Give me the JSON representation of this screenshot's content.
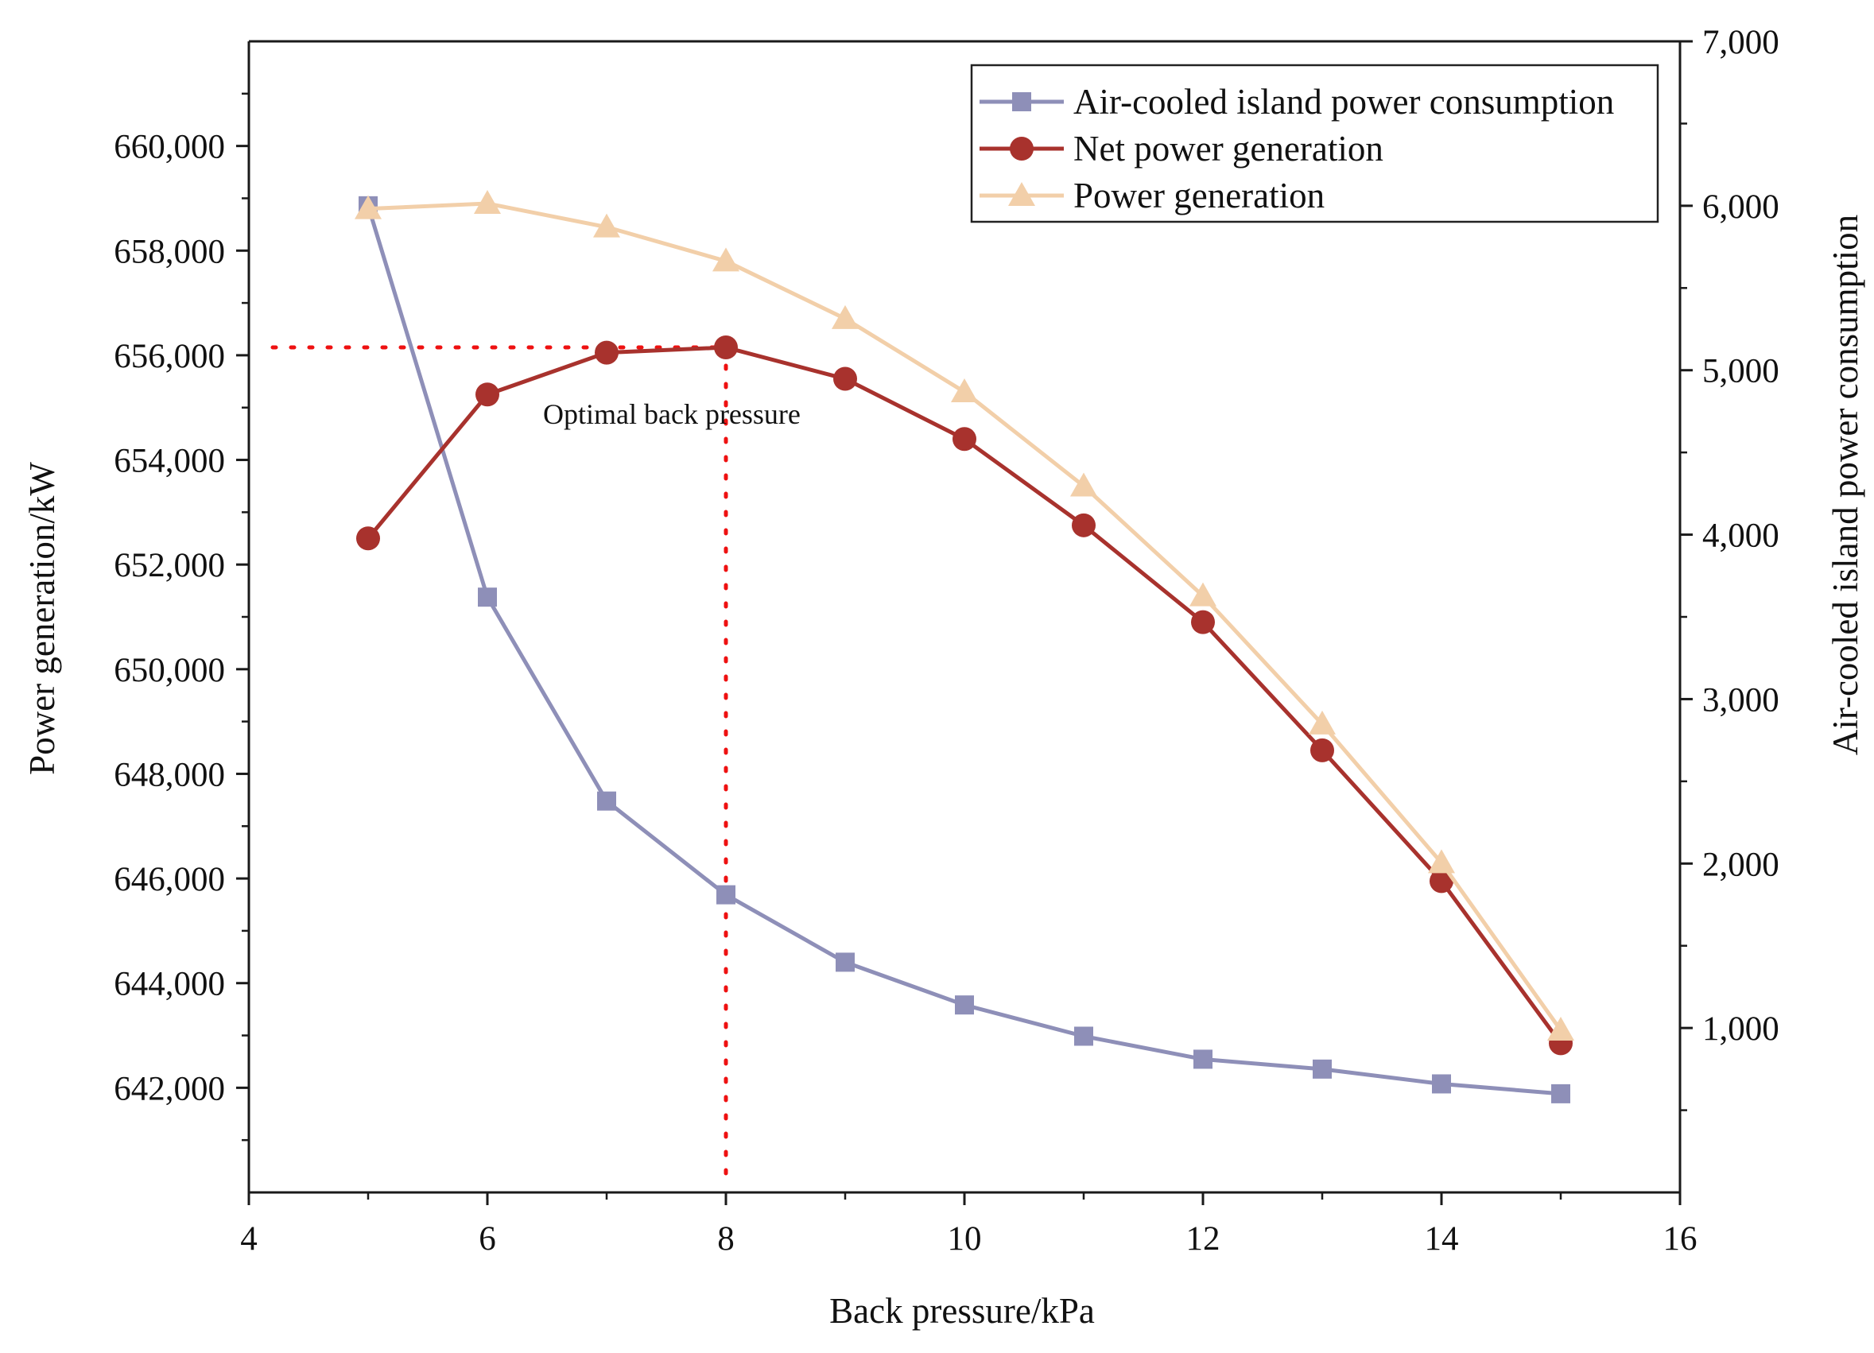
{
  "chart_data": {
    "type": "line",
    "title": "",
    "xlabel": "Back pressure/kPa",
    "ylabel_left": "Power generation/kW",
    "ylabel_right": "Air-cooled island power consumption",
    "xlim": [
      4,
      16
    ],
    "ylim_left": [
      640000,
      662000
    ],
    "ylim_right": [
      0,
      7000
    ],
    "x_ticks": [
      "4",
      "6",
      "8",
      "10",
      "12",
      "14",
      "16"
    ],
    "x_tick_values": [
      4,
      6,
      8,
      10,
      12,
      14,
      16
    ],
    "y_left_ticks": [
      "642,000",
      "644,000",
      "646,000",
      "648,000",
      "650,000",
      "652,000",
      "654,000",
      "656,000",
      "658,000",
      "660,000"
    ],
    "y_left_tick_values": [
      642000,
      644000,
      646000,
      648000,
      650000,
      652000,
      654000,
      656000,
      658000,
      660000
    ],
    "y_right_ticks": [
      "1,000",
      "2,000",
      "3,000",
      "4,000",
      "5,000",
      "6,000",
      "7,000"
    ],
    "y_right_tick_values": [
      1000,
      2000,
      3000,
      4000,
      5000,
      6000,
      7000
    ],
    "grid": false,
    "legend_position": "top-right",
    "series": [
      {
        "name": "Air-cooled island power consumption",
        "axis": "right",
        "marker": "square",
        "color": "#8e8fb8",
        "x": [
          5,
          6,
          7,
          8,
          9,
          10,
          11,
          12,
          13,
          14,
          15
        ],
        "values": [
          6000,
          3620,
          2380,
          1810,
          1400,
          1140,
          950,
          810,
          750,
          660,
          600
        ]
      },
      {
        "name": "Net power generation",
        "axis": "left",
        "marker": "circle",
        "color": "#a8322d",
        "x": [
          5,
          6,
          7,
          8,
          9,
          10,
          11,
          12,
          13,
          14,
          15
        ],
        "values": [
          652500,
          655250,
          656050,
          656150,
          655550,
          654400,
          652750,
          650900,
          648450,
          645950,
          642850
        ]
      },
      {
        "name": "Power generation",
        "axis": "left",
        "marker": "triangle",
        "color": "#f2cfa9",
        "x": [
          5,
          6,
          7,
          8,
          9,
          10,
          11,
          12,
          13,
          14,
          15
        ],
        "values": [
          658800,
          658900,
          658450,
          657800,
          656700,
          655300,
          653500,
          651400,
          648950,
          646300,
          643100
        ]
      }
    ],
    "annotations": [
      {
        "text": "Optimal back pressure",
        "x": 8,
        "y": 656150
      }
    ],
    "reference_lines": [
      {
        "orientation": "horizontal",
        "value": 656150,
        "axis": "left",
        "color": "#ee1111",
        "style": "dotted"
      },
      {
        "orientation": "vertical",
        "value": 8,
        "color": "#ee1111",
        "style": "dotted"
      }
    ]
  }
}
